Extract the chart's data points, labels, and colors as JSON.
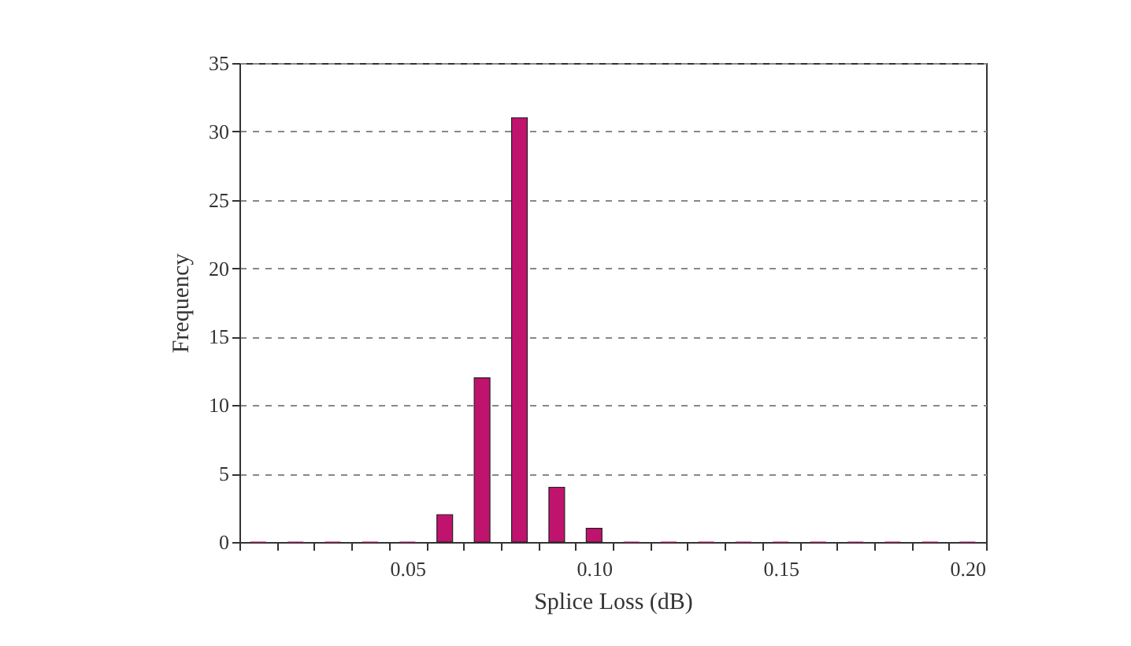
{
  "chart_data": {
    "type": "bar",
    "xlabel": "Splice Loss (dB)",
    "ylabel": "Frequency",
    "categories": [
      null,
      null,
      null,
      null,
      "0.05",
      null,
      null,
      null,
      null,
      "0.10",
      null,
      null,
      null,
      null,
      "0.15",
      null,
      null,
      null,
      null,
      "0.20"
    ],
    "values": [
      0,
      0,
      0,
      0,
      0,
      2,
      12,
      31,
      4,
      1,
      0,
      0,
      0,
      0,
      0,
      0,
      0,
      0,
      0,
      0
    ],
    "color": "#c0136e",
    "ylim": [
      0,
      35
    ],
    "yticks": [
      0,
      5,
      10,
      15,
      20,
      25,
      30,
      35
    ],
    "grid": "y"
  }
}
